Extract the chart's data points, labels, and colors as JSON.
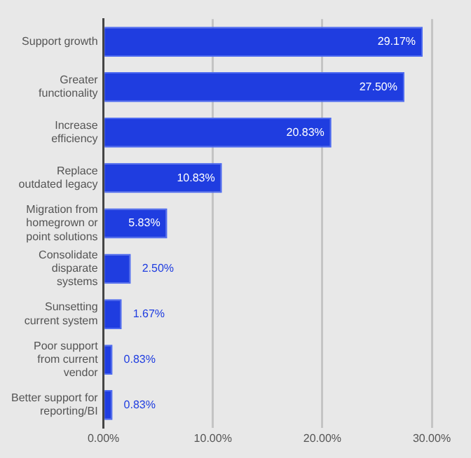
{
  "chart_data": {
    "type": "bar",
    "orientation": "horizontal",
    "categories": [
      "Support growth",
      "Greater functionality",
      "Increase efficiency",
      "Replace outdated legacy",
      "Migration from homegrown or point solutions",
      "Consolidate disparate systems",
      "Sunsetting current system",
      "Poor support from current vendor",
      "Better support for reporting/BI"
    ],
    "values": [
      29.17,
      27.5,
      20.83,
      10.83,
      5.83,
      2.5,
      1.67,
      0.83,
      0.83
    ],
    "value_labels": [
      "29.17%",
      "27.50%",
      "20.83%",
      "10.83%",
      "5.83%",
      "2.50%",
      "1.67%",
      "0.83%",
      "0.83%"
    ],
    "color": "#1f3de0",
    "xlim": [
      0,
      30
    ],
    "xticks": [
      {
        "value": 0,
        "label": "0.00%"
      },
      {
        "value": 10,
        "label": "10.00%"
      },
      {
        "value": 20,
        "label": "20.00%"
      },
      {
        "value": 30,
        "label": "30.00%"
      }
    ],
    "grid": "x"
  }
}
